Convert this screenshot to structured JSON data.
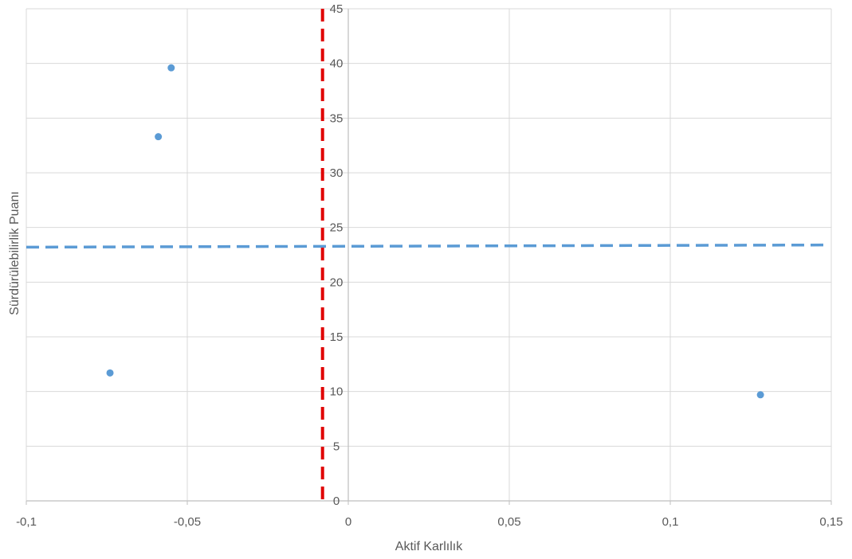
{
  "chart_data": {
    "type": "scatter",
    "xlabel": "Aktif Karlılık",
    "ylabel": "Sürdürülebilirlik Puanı",
    "xlim": [
      -0.1,
      0.15
    ],
    "ylim": [
      0,
      45
    ],
    "x_ticks": [
      -0.1,
      -0.05,
      0,
      0.05,
      0.1,
      0.15
    ],
    "x_tick_labels": [
      "-0,1",
      "-0,05",
      "0",
      "0,05",
      "0,1",
      "0,15"
    ],
    "y_ticks": [
      0,
      5,
      10,
      15,
      20,
      25,
      30,
      35,
      40,
      45
    ],
    "y_tick_labels": [
      "0",
      "5",
      "10",
      "15",
      "20",
      "25",
      "30",
      "35",
      "40",
      "45"
    ],
    "grid": true,
    "series": [
      {
        "points": [
          {
            "x": -0.074,
            "y": 11.7
          },
          {
            "x": -0.059,
            "y": 33.3
          },
          {
            "x": -0.055,
            "y": 39.6
          },
          {
            "x": 0.128,
            "y": 9.7
          }
        ],
        "color": "#5B9BD5"
      }
    ],
    "reference_lines": [
      {
        "orientation": "horizontal",
        "x_range": [
          -0.1,
          0.148
        ],
        "y_range": [
          23.2,
          23.4
        ],
        "color": "#5B9BD5",
        "style": "dashed"
      },
      {
        "orientation": "vertical",
        "x": -0.008,
        "y_range": [
          0,
          45
        ],
        "color": "#E00000",
        "style": "dashed"
      }
    ],
    "colors": {
      "grid": "#D9D9D9",
      "axis": "#BFBFBF",
      "text": "#595959"
    }
  }
}
